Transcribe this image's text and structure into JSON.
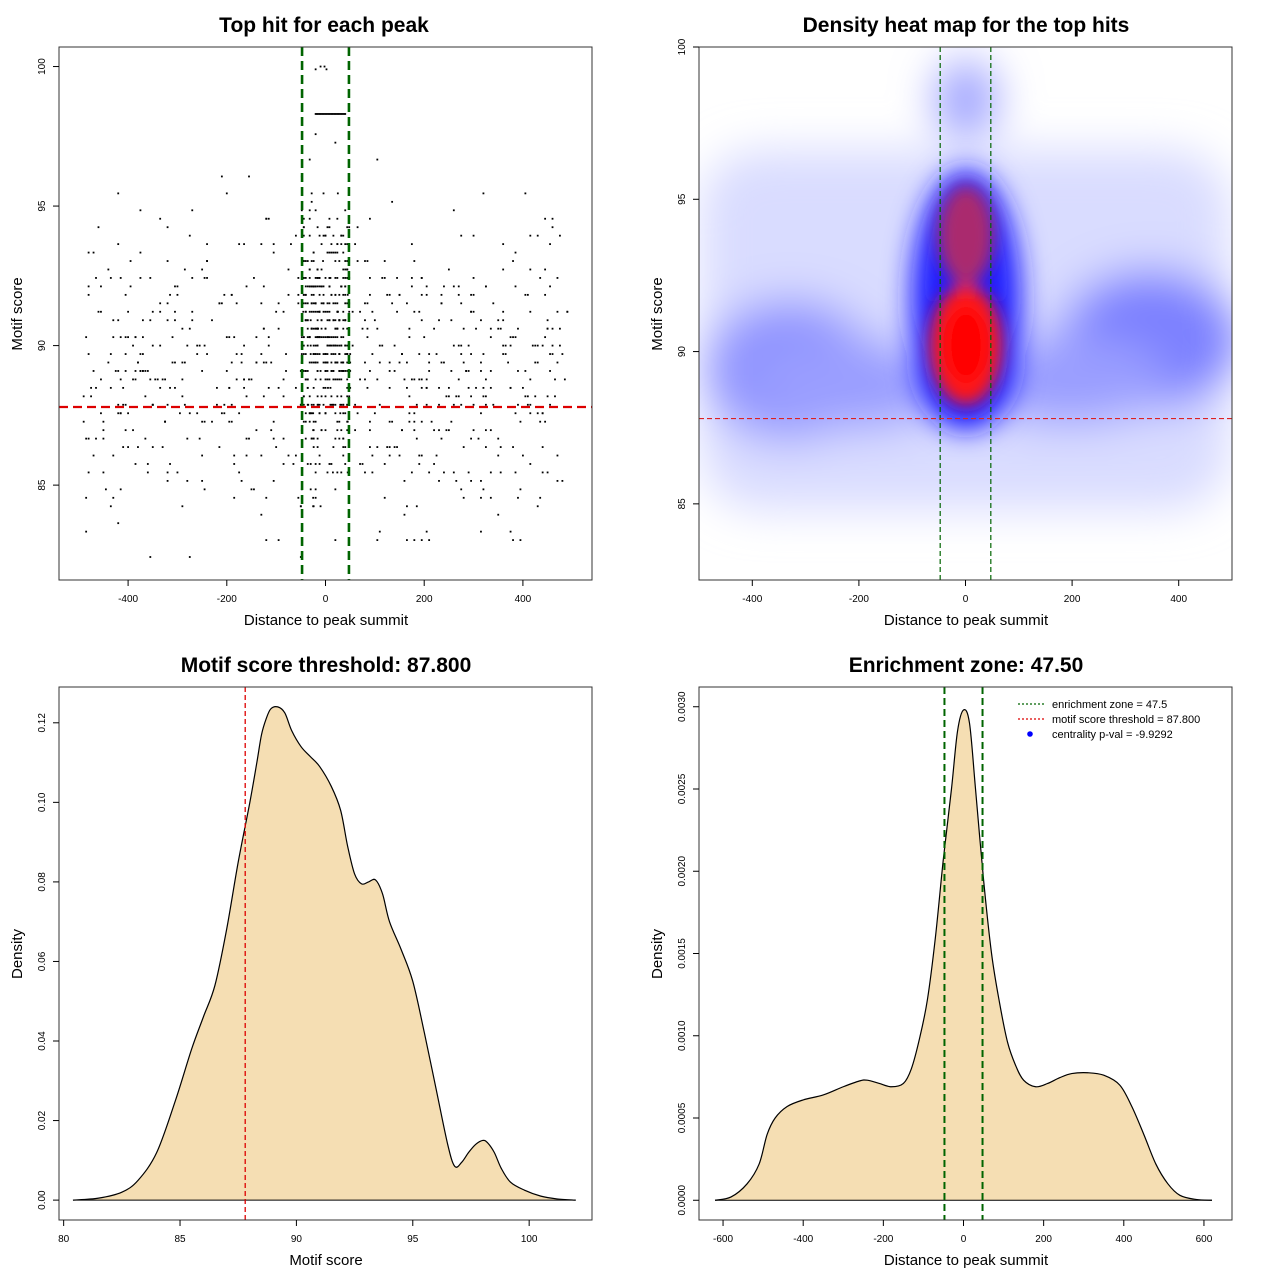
{
  "chart_data": [
    {
      "type": "scatter",
      "title": "Top hit for each peak",
      "xlabel": "Distance to peak summit",
      "ylabel": "Motif score",
      "xlim": [
        -540,
        540
      ],
      "ylim": [
        81.6,
        100.7
      ],
      "xticks": [
        -400,
        -200,
        0,
        200,
        400
      ],
      "yticks": [
        85,
        90,
        95,
        100
      ],
      "threshold_y": 87.8,
      "zone_x": [
        -47.5,
        47.5
      ],
      "threshold_color": "#dd0000",
      "zone_color": "#006400",
      "points_summary": {
        "x_range": [
          -490,
          490
        ],
        "y_range": [
          82.4,
          100
        ],
        "central_x_range": [
          -47.5,
          47.5
        ],
        "central_y_mean": 90.5
      }
    },
    {
      "type": "heatmap",
      "title": "Density heat map for the top hits",
      "xlabel": "Distance to peak summit",
      "ylabel": "Motif score",
      "xlim": [
        -500,
        500
      ],
      "ylim": [
        82.5,
        100
      ],
      "xticks": [
        -400,
        -200,
        0,
        200,
        400
      ],
      "yticks": [
        85,
        90,
        95,
        100
      ],
      "threshold_y": 87.8,
      "zone_x": [
        -47.5,
        47.5
      ],
      "colors": [
        "#ffffff",
        "#0000ff",
        "#ff0000"
      ],
      "hotspots": [
        {
          "x": 5,
          "y": 90.0,
          "level": "max"
        },
        {
          "x": 5,
          "y": 93.8,
          "level": "high"
        },
        {
          "x": 5,
          "y": 98.2,
          "level": "low"
        },
        {
          "x": -380,
          "y": 89.5,
          "level": "low"
        },
        {
          "x": 350,
          "y": 90.3,
          "level": "low"
        }
      ]
    },
    {
      "type": "area",
      "title": "Motif score threshold: 87.800",
      "xlabel": "Motif score",
      "ylabel": "Density",
      "xlim": [
        79.8,
        102.7
      ],
      "ylim": [
        -0.005,
        0.129
      ],
      "xticks": [
        80,
        85,
        90,
        95,
        100
      ],
      "yticks": [
        0.0,
        0.02,
        0.04,
        0.06,
        0.08,
        0.1,
        0.12
      ],
      "ytick_labels": [
        "0.00",
        "0.02",
        "0.04",
        "0.06",
        "0.08",
        "0.10",
        "0.12"
      ],
      "threshold_x": 87.8,
      "fill_color": "#f5deb3",
      "x": [
        80.4,
        81.5,
        82.5,
        83.2,
        84,
        84.8,
        85.5,
        86,
        86.5,
        87,
        87.5,
        88,
        88.3,
        88.5,
        88.7,
        88.9,
        89.2,
        89.5,
        89.8,
        90.2,
        90.6,
        91,
        91.5,
        91.9,
        92.2,
        92.5,
        92.8,
        93.1,
        93.4,
        93.7,
        94,
        94.5,
        95,
        95.5,
        96,
        96.5,
        96.8,
        97.1,
        97.4,
        97.7,
        98,
        98.2,
        98.5,
        98.8,
        99.2,
        99.8,
        100.5,
        101.2,
        102
      ],
      "y": [
        0,
        0.0005,
        0.002,
        0.005,
        0.012,
        0.025,
        0.038,
        0.046,
        0.054,
        0.068,
        0.085,
        0.1,
        0.11,
        0.117,
        0.121,
        0.1235,
        0.124,
        0.1225,
        0.118,
        0.114,
        0.1115,
        0.109,
        0.104,
        0.098,
        0.089,
        0.082,
        0.0795,
        0.08,
        0.0805,
        0.077,
        0.07,
        0.063,
        0.055,
        0.042,
        0.028,
        0.014,
        0.0085,
        0.0095,
        0.012,
        0.014,
        0.015,
        0.0145,
        0.012,
        0.008,
        0.0045,
        0.0025,
        0.001,
        0.0003,
        0
      ],
      "curve_color": "#000000",
      "threshold_color": "#dd0000"
    },
    {
      "type": "area",
      "title": "Enrichment zone: 47.50",
      "xlabel": "Distance to peak summit",
      "ylabel": "Density",
      "xlim": [
        -660,
        670
      ],
      "ylim": [
        -0.00012,
        0.00312
      ],
      "xticks": [
        -600,
        -400,
        -200,
        0,
        200,
        400,
        600
      ],
      "yticks": [
        0,
        0.0005,
        0.001,
        0.0015,
        0.002,
        0.0025,
        0.003
      ],
      "ytick_labels": [
        "0.0000",
        "0.0005",
        "0.0010",
        "0.0015",
        "0.0020",
        "0.0025",
        "0.0030"
      ],
      "zone_x": [
        -47.5,
        47.5
      ],
      "fill_color": "#f5deb3",
      "x": [
        -620,
        -580,
        -540,
        -510,
        -490,
        -470,
        -440,
        -400,
        -350,
        -300,
        -260,
        -240,
        -210,
        -180,
        -150,
        -130,
        -110,
        -90,
        -70,
        -50,
        -30,
        -15,
        0,
        15,
        30,
        50,
        70,
        90,
        110,
        130,
        150,
        180,
        210,
        240,
        270,
        310,
        350,
        390,
        420,
        450,
        480,
        510,
        540,
        580,
        620
      ],
      "y": [
        0,
        2e-05,
        0.0001,
        0.00022,
        0.0004,
        0.0005,
        0.00057,
        0.00061,
        0.00064,
        0.00069,
        0.000725,
        0.00073,
        0.00071,
        0.00069,
        0.00071,
        0.0008,
        0.00098,
        0.00122,
        0.0016,
        0.00208,
        0.0025,
        0.00285,
        0.00298,
        0.0029,
        0.0025,
        0.00195,
        0.0015,
        0.0012,
        0.00096,
        0.00082,
        0.00073,
        0.00069,
        0.00071,
        0.000745,
        0.00077,
        0.000775,
        0.00076,
        0.0007,
        0.00057,
        0.0004,
        0.00022,
        0.0001,
        3e-05,
        5e-06,
        0
      ],
      "curve_color": "#000000",
      "zone_color": "#006400",
      "threshold_color": "#dd0000",
      "legend": [
        {
          "label": "enrichment zone = 47.5",
          "symbol": "line",
          "color": "#006400"
        },
        {
          "label": "motif score threshold = 87.800",
          "symbol": "line",
          "color": "#dd0000"
        },
        {
          "label": "centrality p-val = -9.9292",
          "symbol": "dot",
          "color": "#0000ff"
        }
      ],
      "legend_position": "top-right"
    }
  ]
}
